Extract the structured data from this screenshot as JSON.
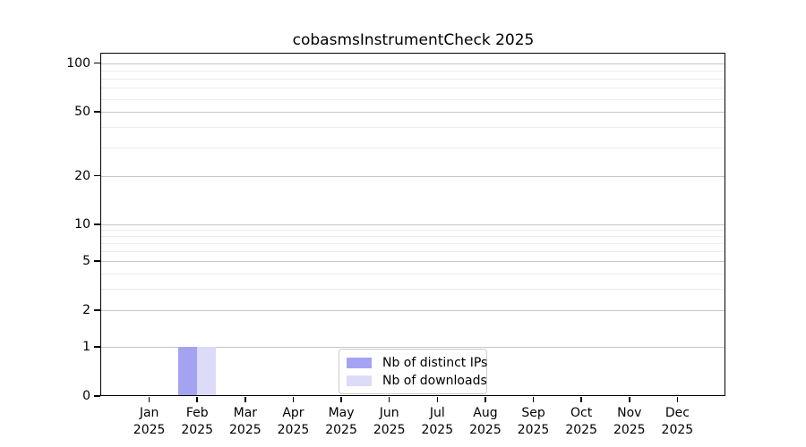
{
  "title": "cobasmsInstrumentCheck 2025",
  "colors": {
    "background": "#ffffff",
    "spine": "#000000",
    "grid_major": "#c6c6c6",
    "grid_minor": "#ebebeb",
    "tick_text": "#000000",
    "series_ips": "#a3a3f2",
    "series_downloads": "#dcdcf8"
  },
  "chart_data": {
    "type": "bar",
    "title": "cobasmsInstrumentCheck 2025",
    "xlabel": "",
    "ylabel": "",
    "grid": "horizontal, major + faint log minors",
    "legend_position": "bottom-center inside plot",
    "yscale": "symlog (linear 0-1, log 1-100)",
    "ylim": [
      0,
      112
    ],
    "y_major_ticks": [
      0,
      1,
      2,
      5,
      10,
      20,
      50,
      100
    ],
    "y_minor_ticks": [
      3,
      4,
      6,
      7,
      8,
      9,
      30,
      40,
      60,
      70,
      80,
      90
    ],
    "categories": [
      {
        "m": "Jan",
        "y": "2025"
      },
      {
        "m": "Feb",
        "y": "2025"
      },
      {
        "m": "Mar",
        "y": "2025"
      },
      {
        "m": "Apr",
        "y": "2025"
      },
      {
        "m": "May",
        "y": "2025"
      },
      {
        "m": "Jun",
        "y": "2025"
      },
      {
        "m": "Jul",
        "y": "2025"
      },
      {
        "m": "Aug",
        "y": "2025"
      },
      {
        "m": "Sep",
        "y": "2025"
      },
      {
        "m": "Oct",
        "y": "2025"
      },
      {
        "m": "Nov",
        "y": "2025"
      },
      {
        "m": "Dec",
        "y": "2025"
      }
    ],
    "series": [
      {
        "name": "Nb of distinct IPs",
        "color": "#a3a3f2",
        "values": [
          0,
          1,
          0,
          0,
          0,
          0,
          0,
          0,
          0,
          0,
          0,
          0
        ]
      },
      {
        "name": "Nb of downloads",
        "color": "#dcdcf8",
        "values": [
          0,
          1,
          0,
          0,
          0,
          0,
          0,
          0,
          0,
          0,
          0,
          0
        ]
      }
    ]
  }
}
